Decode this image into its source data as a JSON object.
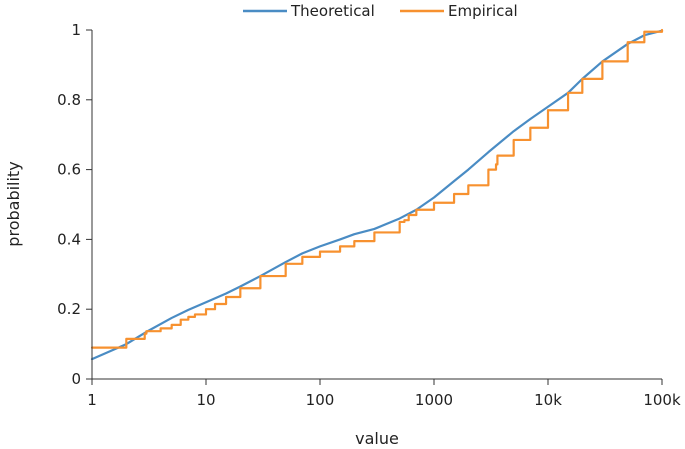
{
  "chart_data": {
    "type": "line",
    "xscale": "log",
    "xlabel": "value",
    "ylabel": "probability",
    "xlim": [
      1,
      100000
    ],
    "ylim": [
      0,
      1
    ],
    "grid": false,
    "legend_position": "top-center",
    "x_ticks": [
      {
        "value": 1,
        "label": "1"
      },
      {
        "value": 10,
        "label": "10"
      },
      {
        "value": 100,
        "label": "100"
      },
      {
        "value": 1000,
        "label": "1000"
      },
      {
        "value": 10000,
        "label": "10k"
      },
      {
        "value": 100000,
        "label": "100k"
      }
    ],
    "y_ticks": [
      {
        "value": 0,
        "label": "0"
      },
      {
        "value": 0.2,
        "label": "0.2"
      },
      {
        "value": 0.4,
        "label": "0.4"
      },
      {
        "value": 0.6,
        "label": "0.6"
      },
      {
        "value": 0.8,
        "label": "0.8"
      },
      {
        "value": 1,
        "label": "1"
      }
    ],
    "series": [
      {
        "name": "Theoretical",
        "color": "#4a8cc4",
        "step": false,
        "points": [
          [
            1,
            0.057
          ],
          [
            2,
            0.1
          ],
          [
            3,
            0.135
          ],
          [
            5,
            0.175
          ],
          [
            7,
            0.198
          ],
          [
            10,
            0.22
          ],
          [
            15,
            0.245
          ],
          [
            20,
            0.265
          ],
          [
            30,
            0.295
          ],
          [
            50,
            0.335
          ],
          [
            70,
            0.36
          ],
          [
            100,
            0.38
          ],
          [
            150,
            0.4
          ],
          [
            200,
            0.415
          ],
          [
            300,
            0.43
          ],
          [
            500,
            0.46
          ],
          [
            700,
            0.485
          ],
          [
            1000,
            0.52
          ],
          [
            1500,
            0.567
          ],
          [
            2000,
            0.6
          ],
          [
            3000,
            0.65
          ],
          [
            5000,
            0.71
          ],
          [
            7000,
            0.745
          ],
          [
            10000,
            0.78
          ],
          [
            15000,
            0.82
          ],
          [
            20000,
            0.86
          ],
          [
            30000,
            0.91
          ],
          [
            50000,
            0.96
          ],
          [
            70000,
            0.985
          ],
          [
            100000,
            0.998
          ]
        ]
      },
      {
        "name": "Empirical",
        "color": "#f7912f",
        "step": true,
        "points": [
          [
            1,
            0.09
          ],
          [
            1.9,
            0.09
          ],
          [
            2,
            0.115
          ],
          [
            2.7,
            0.115
          ],
          [
            2.9,
            0.13
          ],
          [
            3,
            0.137
          ],
          [
            4,
            0.145
          ],
          [
            5,
            0.155
          ],
          [
            6,
            0.17
          ],
          [
            7,
            0.178
          ],
          [
            8,
            0.185
          ],
          [
            10,
            0.2
          ],
          [
            12,
            0.215
          ],
          [
            15,
            0.235
          ],
          [
            20,
            0.26
          ],
          [
            30,
            0.295
          ],
          [
            50,
            0.33
          ],
          [
            70,
            0.35
          ],
          [
            100,
            0.365
          ],
          [
            150,
            0.38
          ],
          [
            200,
            0.395
          ],
          [
            300,
            0.42
          ],
          [
            500,
            0.45
          ],
          [
            550,
            0.455
          ],
          [
            600,
            0.47
          ],
          [
            700,
            0.485
          ],
          [
            1000,
            0.505
          ],
          [
            1500,
            0.53
          ],
          [
            2000,
            0.555
          ],
          [
            3000,
            0.6
          ],
          [
            3500,
            0.615
          ],
          [
            3600,
            0.64
          ],
          [
            5000,
            0.685
          ],
          [
            7000,
            0.72
          ],
          [
            10000,
            0.77
          ],
          [
            15000,
            0.82
          ],
          [
            20000,
            0.86
          ],
          [
            30000,
            0.91
          ],
          [
            50000,
            0.965
          ],
          [
            70000,
            0.995
          ],
          [
            100000,
            1.0
          ]
        ]
      }
    ]
  }
}
